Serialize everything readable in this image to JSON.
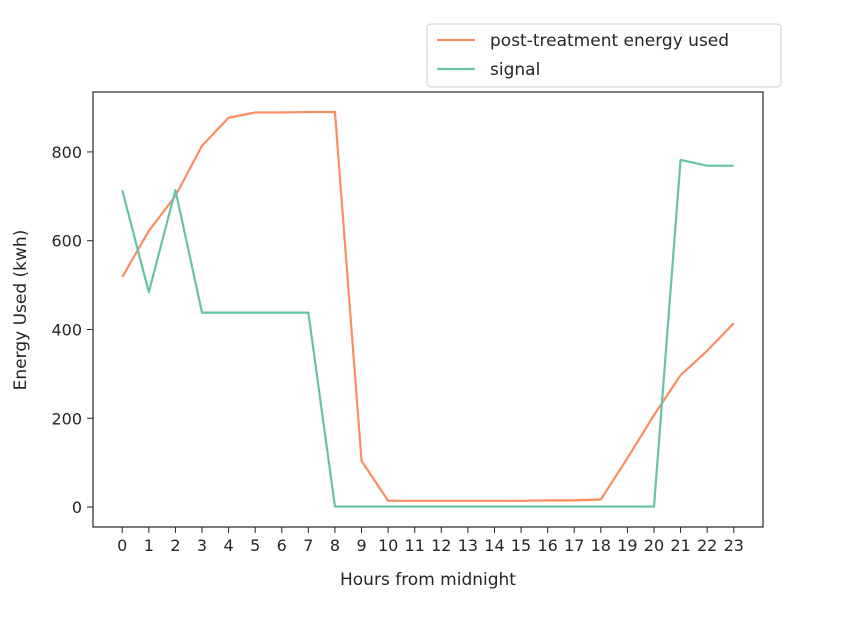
{
  "chart_data": {
    "type": "line",
    "title": "",
    "xlabel": "Hours from midnight",
    "ylabel": "Energy Used (kwh)",
    "x": [
      0,
      1,
      2,
      3,
      4,
      5,
      6,
      7,
      8,
      9,
      10,
      11,
      12,
      13,
      14,
      15,
      16,
      17,
      18,
      19,
      20,
      21,
      22,
      23
    ],
    "xticks": [
      "0",
      "1",
      "2",
      "3",
      "4",
      "5",
      "6",
      "7",
      "8",
      "9",
      "10",
      "11",
      "12",
      "13",
      "14",
      "15",
      "16",
      "17",
      "18",
      "19",
      "20",
      "21",
      "22",
      "23"
    ],
    "yticks": [
      "0",
      "200",
      "400",
      "600",
      "800"
    ],
    "xlim": [
      -1.1,
      24.1
    ],
    "ylim": [
      -45,
      935
    ],
    "grid": false,
    "legend_position": "top-right, above plot",
    "series": [
      {
        "name": "post-treatment energy used",
        "color": "#fc8d62",
        "values": [
          518,
          622,
          701,
          814,
          877,
          889,
          889,
          890,
          890,
          104,
          14,
          14,
          14,
          14,
          14,
          14,
          15,
          15,
          17,
          110,
          207,
          297,
          352,
          414
        ]
      },
      {
        "name": "signal",
        "color": "#66c2a5",
        "values": [
          714,
          484,
          714,
          438,
          438,
          438,
          438,
          438,
          1,
          1,
          1,
          1,
          1,
          1,
          1,
          1,
          1,
          1,
          1,
          1,
          1,
          782,
          769,
          769
        ]
      }
    ]
  }
}
